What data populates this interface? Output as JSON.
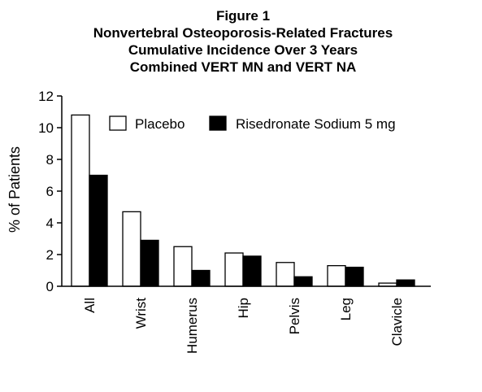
{
  "chart_data": {
    "type": "bar",
    "title_lines": [
      "Figure 1",
      "Nonvertebral Osteoporosis-Related Fractures",
      "Cumulative Incidence Over 3 Years",
      "Combined VERT MN and VERT NA"
    ],
    "ylabel": "% of Patients",
    "xlabel": "",
    "ylim": [
      0,
      12
    ],
    "yticks": [
      "0",
      "2",
      "4",
      "6",
      "8",
      "10",
      "12"
    ],
    "categories": [
      "All",
      "Wrist",
      "Humerus",
      "Hip",
      "Pelvis",
      "Leg",
      "Clavicle"
    ],
    "series": [
      {
        "name": "Placebo",
        "color": "#ffffff",
        "values": [
          10.8,
          4.7,
          2.5,
          2.1,
          1.5,
          1.3,
          0.2
        ]
      },
      {
        "name": "Risedronate Sodium 5 mg",
        "color": "#000000",
        "values": [
          7.0,
          2.9,
          1.0,
          1.9,
          0.6,
          1.2,
          0.4
        ]
      }
    ],
    "legend_position": "top-right",
    "grid": false
  }
}
